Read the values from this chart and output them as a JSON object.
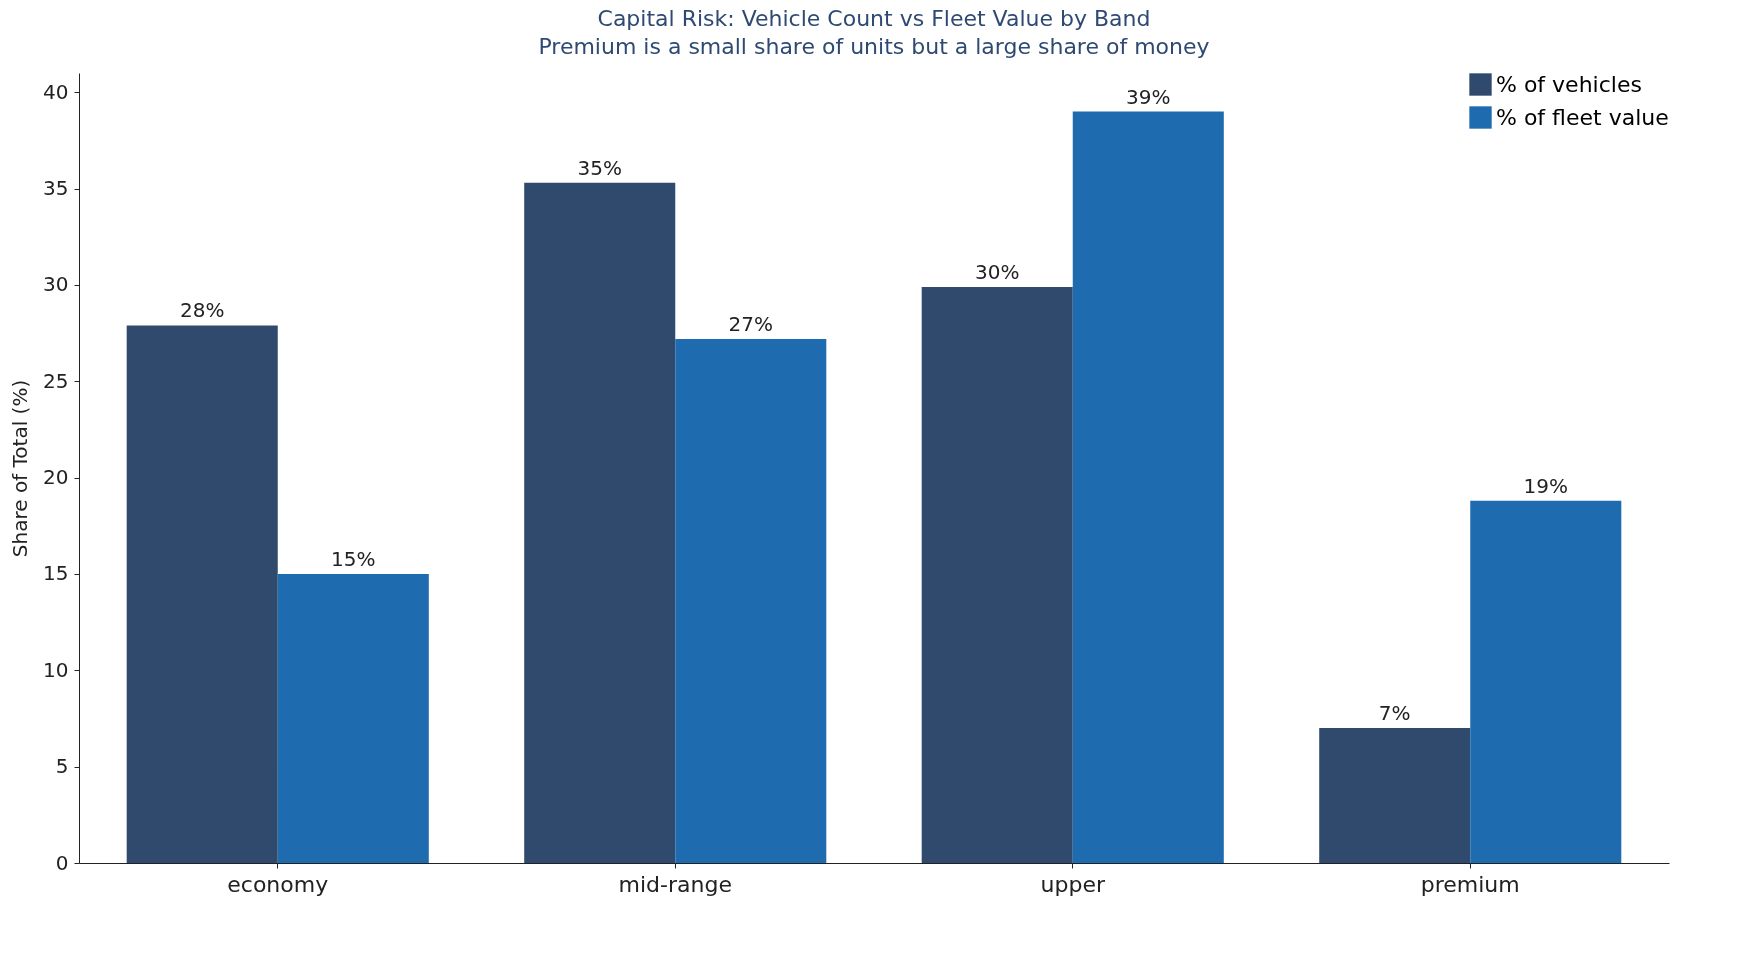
{
  "chart_data": {
    "type": "bar",
    "title": "Capital Risk: Vehicle Count vs Fleet Value by Band",
    "subtitle": "Premium is a small share of units but a large share of money",
    "ylabel": "Share of Total (%)",
    "categories": [
      "economy",
      "mid-range",
      "upper",
      "premium"
    ],
    "series": [
      {
        "name": "% of vehicles",
        "color": "#304a6e",
        "values": [
          27.9,
          35.3,
          29.9,
          7.0
        ],
        "value_labels": [
          "28%",
          "35%",
          "30%",
          "7%"
        ]
      },
      {
        "name": "% of fleet value",
        "color": "#1f6bb0",
        "values": [
          15.0,
          27.2,
          39.0,
          18.8
        ],
        "value_labels": [
          "15%",
          "27%",
          "39%",
          "19%"
        ]
      }
    ],
    "ylim": [
      0,
      41
    ],
    "yticks": [
      0,
      5,
      10,
      15,
      20,
      25,
      30,
      35,
      40
    ],
    "grid": false,
    "legend": "top right"
  }
}
